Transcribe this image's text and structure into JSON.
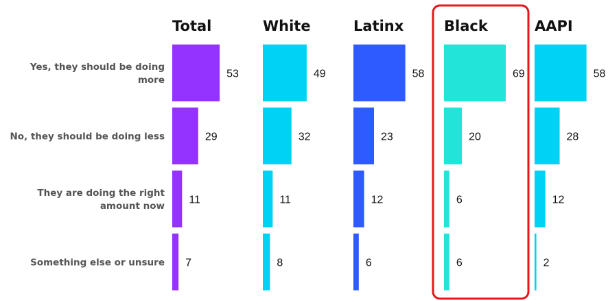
{
  "chart_data": {
    "type": "bar",
    "title": "",
    "xlabel": "",
    "ylabel": "",
    "categories": [
      [
        "Yes, they should be doing",
        "more"
      ],
      [
        "No, they should be doing less"
      ],
      [
        "They are doing the right",
        "amount now"
      ],
      [
        "Something else or unsure"
      ]
    ],
    "series": [
      {
        "name": "Total",
        "values": [
          53,
          29,
          11,
          7
        ],
        "color": "#9433FF"
      },
      {
        "name": "White",
        "values": [
          49,
          32,
          11,
          8
        ],
        "color": "#00D2F5"
      },
      {
        "name": "Latinx",
        "values": [
          58,
          23,
          12,
          6
        ],
        "color": "#2E5BFF"
      },
      {
        "name": "Black",
        "values": [
          69,
          20,
          6,
          6
        ],
        "color": "#22E4D9"
      },
      {
        "name": "AAPI",
        "values": [
          58,
          28,
          12,
          2
        ],
        "color": "#00D2F5"
      }
    ],
    "xlim": [
      0,
      69
    ],
    "grid": false,
    "legend": "none",
    "highlight": {
      "series": "Black",
      "color": "#E8141B"
    }
  }
}
